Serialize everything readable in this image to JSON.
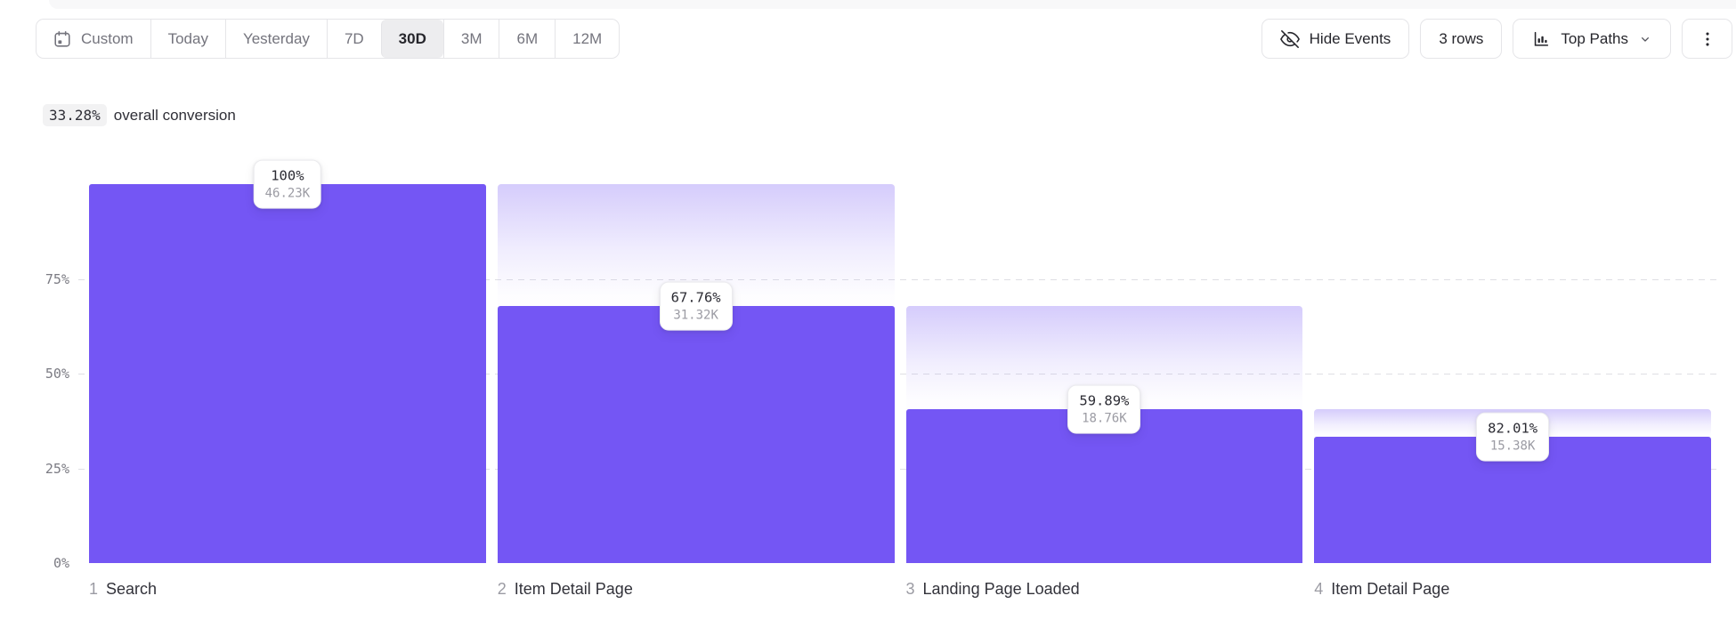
{
  "toolbar": {
    "date_ranges": [
      {
        "label": "Custom",
        "icon": "calendar",
        "active": false
      },
      {
        "label": "Today",
        "active": false
      },
      {
        "label": "Yesterday",
        "active": false
      },
      {
        "label": "7D",
        "active": false
      },
      {
        "label": "30D",
        "active": true
      },
      {
        "label": "3M",
        "active": false
      },
      {
        "label": "6M",
        "active": false
      },
      {
        "label": "12M",
        "active": false
      }
    ],
    "hide_events_label": "Hide Events",
    "rows_label": "3 rows",
    "top_paths_label": "Top Paths"
  },
  "summary": {
    "conversion_pct": "33.28%",
    "conversion_text": "overall conversion"
  },
  "chart_data": {
    "type": "bar",
    "subtype": "funnel",
    "title": "33.28% overall conversion",
    "xlabel": "",
    "ylabel": "",
    "ylim": [
      0,
      100
    ],
    "grid": "dashed horizontal lines at 25%, 50%, 75%",
    "legend": "none",
    "categories": [
      "Search",
      "Item Detail Page",
      "Landing Page Loaded",
      "Item Detail Page"
    ],
    "y_ticks": [
      {
        "label": "75%",
        "value": 75
      },
      {
        "label": "50%",
        "value": 50
      },
      {
        "label": "25%",
        "value": 25
      },
      {
        "label": "0%",
        "value": 0
      }
    ],
    "steps": [
      {
        "index": 1,
        "label": "Search",
        "pct_label": "100%",
        "count_label": "46.23K",
        "count": 46230,
        "step_conversion_pct": 100,
        "overall_pct": 100
      },
      {
        "index": 2,
        "label": "Item Detail Page",
        "pct_label": "67.76%",
        "count_label": "31.32K",
        "count": 31320,
        "step_conversion_pct": 67.76,
        "overall_pct": 67.76
      },
      {
        "index": 3,
        "label": "Landing Page Loaded",
        "pct_label": "59.89%",
        "count_label": "18.76K",
        "count": 18760,
        "step_conversion_pct": 59.89,
        "overall_pct": 40.58
      },
      {
        "index": 4,
        "label": "Item Detail Page",
        "pct_label": "82.01%",
        "count_label": "15.38K",
        "count": 15380,
        "step_conversion_pct": 82.01,
        "overall_pct": 33.27
      }
    ]
  },
  "colors": {
    "accent": "#7456F4",
    "ghost_top": "#D8D0FA",
    "grid": "#DFDFE4",
    "border": "#E5E5E8",
    "text_dark": "#26262C",
    "text_gray": "#74747D",
    "text_light": "#9B9BA3",
    "chip_bg": "#F2F2F3",
    "active_bg": "#EDEDEF"
  }
}
